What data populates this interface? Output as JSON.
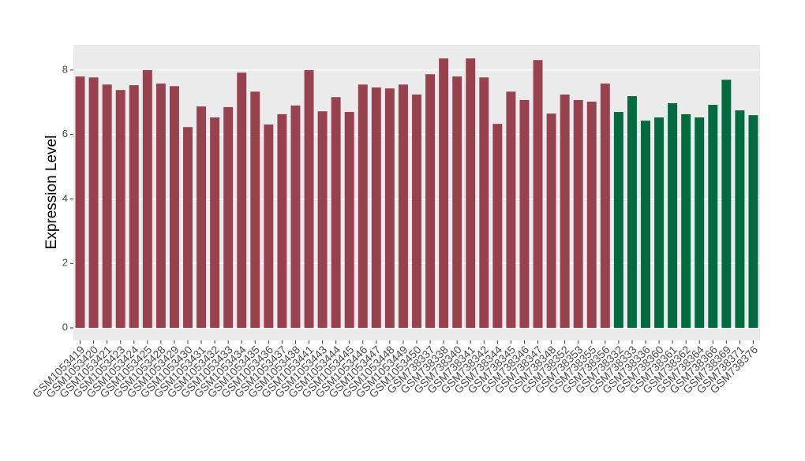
{
  "chart_data": {
    "type": "bar",
    "y_label": "Expression Level",
    "categories": [
      "GSM1053419",
      "GSM1053420",
      "GSM1053421",
      "GSM1053423",
      "GSM1053424",
      "GSM1053425",
      "GSM1053428",
      "GSM1053429",
      "GSM1053430",
      "GSM1053431",
      "GSM1053432",
      "GSM1053433",
      "GSM1053434",
      "GSM1053435",
      "GSM1053436",
      "GSM1053437",
      "GSM1053438",
      "GSM1053441",
      "GSM1053443",
      "GSM1053444",
      "GSM1053445",
      "GSM1053446",
      "GSM1053447",
      "GSM1053448",
      "GSM1053449",
      "GSM1053450",
      "GSM738337",
      "GSM738338",
      "GSM738340",
      "GSM738341",
      "GSM738342",
      "GSM738344",
      "GSM738345",
      "GSM738346",
      "GSM738347",
      "GSM738348",
      "GSM738352",
      "GSM738353",
      "GSM738355",
      "GSM738356",
      "GSM738332",
      "GSM738333",
      "GSM738336",
      "GSM738360",
      "GSM738361",
      "GSM738362",
      "GSM738364",
      "GSM738366",
      "GSM738369",
      "GSM738371",
      "GSM738376"
    ],
    "series": [
      {
        "color": "#98414f",
        "values": [
          7.8,
          7.77,
          7.55,
          7.38,
          7.53,
          8.0,
          7.58,
          7.5,
          6.23,
          6.87,
          6.53,
          6.85,
          7.92,
          7.33,
          6.31,
          6.63,
          6.9,
          8.0,
          6.72,
          7.16,
          6.7,
          7.55,
          7.46,
          7.43,
          7.55,
          7.24,
          7.87,
          8.36,
          7.8,
          8.36,
          7.77,
          6.33,
          7.33,
          7.07,
          8.31,
          6.65,
          7.24,
          7.07,
          7.02,
          7.58,
          null,
          null,
          null,
          null,
          null,
          null,
          null,
          null,
          null,
          null,
          null
        ]
      },
      {
        "color": "#006a40",
        "values": [
          null,
          null,
          null,
          null,
          null,
          null,
          null,
          null,
          null,
          null,
          null,
          null,
          null,
          null,
          null,
          null,
          null,
          null,
          null,
          null,
          null,
          null,
          null,
          null,
          null,
          null,
          null,
          null,
          null,
          null,
          null,
          null,
          null,
          null,
          null,
          null,
          null,
          null,
          null,
          null,
          6.7,
          7.19,
          6.43,
          6.53,
          6.97,
          6.63,
          6.53,
          6.92,
          7.7,
          6.75,
          6.6
        ]
      }
    ],
    "ylim": [
      -0.39,
      8.78
    ],
    "yticks": [
      0,
      2,
      4,
      6,
      8
    ],
    "grid": true
  }
}
